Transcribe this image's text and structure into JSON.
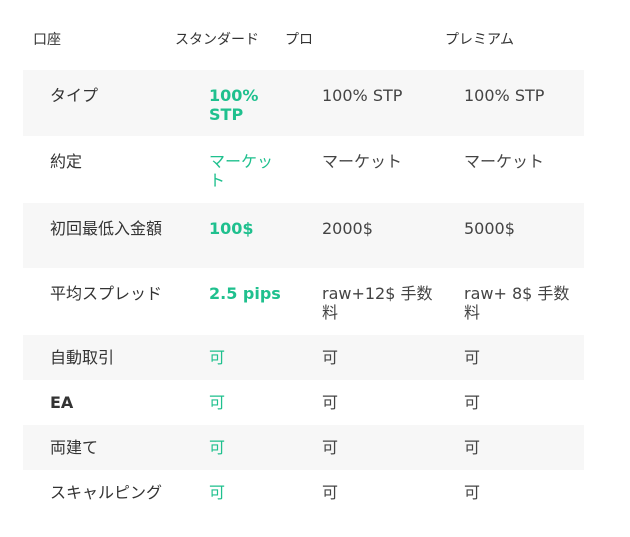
{
  "header": {
    "account": "口座",
    "standard": "スタンダード",
    "pro": "プロ",
    "premium": "プレミアム"
  },
  "rows": [
    {
      "label": "タイプ",
      "standard": "100% STP",
      "pro": "100% STP",
      "premium": "100% STP"
    },
    {
      "label": "約定",
      "standard": "マーケット",
      "pro": "マーケット",
      "premium": "マーケット"
    },
    {
      "label": "初回最低入金額",
      "standard": "100$",
      "pro": "2000$",
      "premium": "5000$"
    },
    {
      "label": "平均スプレッド",
      "standard": "2.5 pips",
      "pro": "raw+12$ 手数料",
      "premium": "raw+ 8$ 手数料"
    },
    {
      "label": "自動取引",
      "standard": "可",
      "pro": "可",
      "premium": "可"
    },
    {
      "label": "EA",
      "standard": "可",
      "pro": "可",
      "premium": "可"
    },
    {
      "label": "両建て",
      "standard": "可",
      "pro": "可",
      "premium": "可"
    },
    {
      "label": "スキャルピング",
      "standard": "可",
      "pro": "可",
      "premium": "可"
    }
  ],
  "colors": {
    "accent": "#1fc08e",
    "row_shade": "#f7f7f7",
    "text": "#333333"
  }
}
